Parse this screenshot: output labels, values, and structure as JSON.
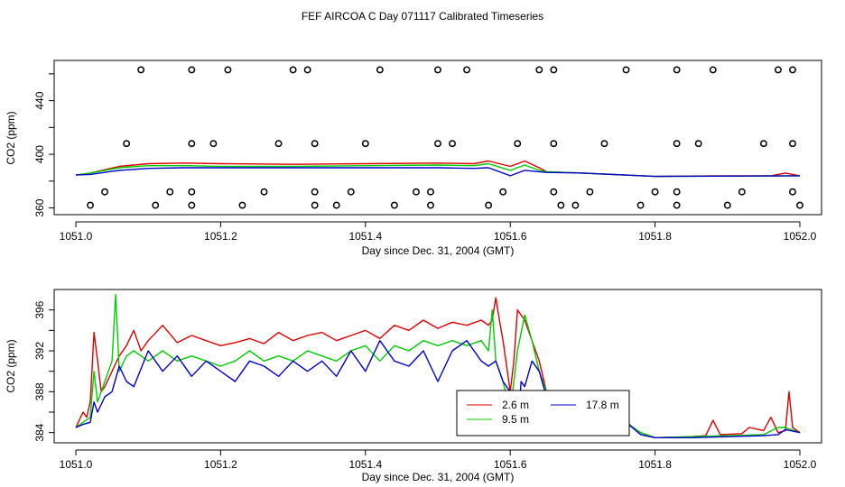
{
  "title": "FEF AIRCOA C  Day 071117  Calibrated Timeseries",
  "chart_data": [
    {
      "type": "line",
      "title": "",
      "xlabel": "Day since Dec. 31, 2004 (GMT)",
      "ylabel": "CO2 (ppm)",
      "xlim": [
        1051.0,
        1052.0
      ],
      "ylim": [
        355,
        470
      ],
      "xticks": [
        1051.0,
        1051.2,
        1051.4,
        1051.6,
        1051.8,
        1052.0
      ],
      "xtick_labels": [
        "1051.0",
        "1051.2",
        "1051.4",
        "1051.6",
        "1051.8",
        "1052.0"
      ],
      "yticks": [
        360,
        380,
        400,
        420,
        440,
        460
      ],
      "ytick_labels": [
        "360",
        "",
        "400",
        "",
        "440",
        ""
      ],
      "series": [
        {
          "name": "2.6 m",
          "color": "#dd0000",
          "x": [
            1051.0,
            1051.02,
            1051.06,
            1051.1,
            1051.15,
            1051.2,
            1051.3,
            1051.4,
            1051.5,
            1051.55,
            1051.57,
            1051.6,
            1051.62,
            1051.64,
            1051.65,
            1051.7,
            1051.8,
            1051.88,
            1051.9,
            1051.96,
            1051.98,
            1052.0
          ],
          "y": [
            384.5,
            386,
            391,
            393,
            393.5,
            393,
            392.5,
            393,
            393.5,
            393,
            395,
            391,
            395,
            390,
            387,
            386,
            383.5,
            384,
            384,
            384,
            386,
            384
          ]
        },
        {
          "name": "9.5 m",
          "color": "#00cc00",
          "x": [
            1051.0,
            1051.02,
            1051.06,
            1051.1,
            1051.15,
            1051.2,
            1051.3,
            1051.4,
            1051.5,
            1051.55,
            1051.57,
            1051.6,
            1051.62,
            1051.64,
            1051.65,
            1051.7,
            1051.8,
            1052.0
          ],
          "y": [
            384.5,
            386,
            390,
            391.5,
            391.5,
            391,
            391,
            391.5,
            392,
            391.5,
            393,
            388,
            392,
            388,
            387,
            386,
            383.5,
            384
          ]
        },
        {
          "name": "17.8 m",
          "color": "#0000cc",
          "x": [
            1051.0,
            1051.02,
            1051.06,
            1051.1,
            1051.15,
            1051.2,
            1051.3,
            1051.4,
            1051.5,
            1051.55,
            1051.57,
            1051.6,
            1051.62,
            1051.64,
            1051.65,
            1051.7,
            1051.8,
            1052.0
          ],
          "y": [
            384.5,
            385,
            388,
            389.5,
            390,
            390,
            390,
            390,
            390,
            389.5,
            390,
            384,
            388,
            387,
            386.5,
            386,
            383.5,
            384
          ]
        }
      ],
      "markers": {
        "name": "o",
        "x": [
          1051.09,
          1051.16,
          1051.21,
          1051.3,
          1051.32,
          1051.42,
          1051.5,
          1051.54,
          1051.64,
          1051.66,
          1051.76,
          1051.83,
          1051.88,
          1051.97,
          1051.99,
          1051.07,
          1051.16,
          1051.19,
          1051.28,
          1051.33,
          1051.4,
          1051.5,
          1051.52,
          1051.61,
          1051.66,
          1051.73,
          1051.83,
          1051.86,
          1051.95,
          1051.99,
          1051.04,
          1051.13,
          1051.16,
          1051.26,
          1051.33,
          1051.38,
          1051.47,
          1051.49,
          1051.59,
          1051.66,
          1051.71,
          1051.8,
          1051.83,
          1051.92,
          1051.99,
          1051.02,
          1051.11,
          1051.16,
          1051.23,
          1051.33,
          1051.36,
          1051.44,
          1051.49,
          1051.57,
          1051.67,
          1051.69,
          1051.78,
          1051.83,
          1051.9,
          1052.0
        ],
        "y": [
          463,
          463,
          463,
          463,
          463,
          463,
          463,
          463,
          463,
          463,
          463,
          463,
          463,
          463,
          463,
          408,
          408,
          408,
          408,
          408,
          408,
          408,
          408,
          408,
          408,
          408,
          408,
          408,
          408,
          408,
          372,
          372,
          372,
          372,
          372,
          372,
          372,
          372,
          372,
          372,
          372,
          372,
          372,
          372,
          372,
          362,
          362,
          362,
          362,
          362,
          362,
          362,
          362,
          362,
          362,
          362,
          362,
          362,
          362,
          362
        ]
      }
    },
    {
      "type": "line",
      "title": "",
      "xlabel": "Day since Dec. 31, 2004 (GMT)",
      "ylabel": "CO2 (ppm)",
      "xlim": [
        1051.0,
        1052.0
      ],
      "ylim": [
        383,
        398
      ],
      "xticks": [
        1051.0,
        1051.2,
        1051.4,
        1051.6,
        1051.8,
        1052.0
      ],
      "xtick_labels": [
        "1051.0",
        "1051.2",
        "1051.4",
        "1051.6",
        "1051.8",
        "1052.0"
      ],
      "yticks": [
        384,
        386,
        388,
        390,
        392,
        394,
        396
      ],
      "ytick_labels": [
        "384",
        "",
        "388",
        "",
        "392",
        "",
        "396"
      ],
      "legend": {
        "placement": "bottom-right",
        "entries": [
          "2.6 m",
          "9.5 m",
          "17.8 m"
        ]
      },
      "series": [
        {
          "name": "2.6 m",
          "color": "#dd0000",
          "x": [
            1051.0,
            1051.01,
            1051.015,
            1051.02,
            1051.025,
            1051.03,
            1051.035,
            1051.04,
            1051.05,
            1051.06,
            1051.07,
            1051.08,
            1051.09,
            1051.1,
            1051.12,
            1051.14,
            1051.16,
            1051.18,
            1051.2,
            1051.22,
            1051.24,
            1051.26,
            1051.28,
            1051.3,
            1051.32,
            1051.34,
            1051.36,
            1051.38,
            1051.4,
            1051.42,
            1051.44,
            1051.46,
            1051.48,
            1051.5,
            1051.52,
            1051.54,
            1051.56,
            1051.57,
            1051.575,
            1051.58,
            1051.585,
            1051.59,
            1051.6,
            1051.605,
            1051.61,
            1051.62,
            1051.63,
            1051.64,
            1051.65,
            1051.66,
            1051.68,
            1051.7,
            1051.72,
            1051.74,
            1051.76,
            1051.78,
            1051.8,
            1051.85,
            1051.87,
            1051.88,
            1051.89,
            1051.92,
            1051.93,
            1051.95,
            1051.96,
            1051.97,
            1051.98,
            1051.985,
            1051.99,
            1052.0
          ],
          "y": [
            384.5,
            386,
            385.5,
            387,
            393.8,
            391,
            388,
            388.5,
            390,
            391.5,
            392.5,
            394,
            392,
            393,
            394.5,
            392.8,
            393.5,
            393,
            392.5,
            392.8,
            393.2,
            392.7,
            393.8,
            393,
            393.5,
            393.8,
            393,
            393.5,
            394,
            393.2,
            394.5,
            394,
            395,
            394.2,
            394.8,
            394.5,
            395,
            394.5,
            395,
            397.2,
            395,
            393,
            388,
            391,
            396,
            395,
            393,
            391,
            388,
            387.5,
            387,
            386.5,
            386,
            385.5,
            385,
            384,
            383.5,
            383.6,
            383.7,
            385.2,
            383.8,
            383.9,
            384.5,
            384.2,
            385.5,
            384,
            384.2,
            388,
            384.5,
            384
          ]
        },
        {
          "name": "9.5 m",
          "color": "#00cc00",
          "x": [
            1051.0,
            1051.01,
            1051.02,
            1051.025,
            1051.03,
            1051.04,
            1051.05,
            1051.055,
            1051.06,
            1051.07,
            1051.08,
            1051.1,
            1051.12,
            1051.14,
            1051.16,
            1051.18,
            1051.2,
            1051.22,
            1051.24,
            1051.26,
            1051.28,
            1051.3,
            1051.32,
            1051.34,
            1051.36,
            1051.38,
            1051.4,
            1051.42,
            1051.44,
            1051.46,
            1051.48,
            1051.5,
            1051.52,
            1051.54,
            1051.56,
            1051.57,
            1051.575,
            1051.58,
            1051.59,
            1051.6,
            1051.61,
            1051.62,
            1051.63,
            1051.64,
            1051.65,
            1051.66,
            1051.68,
            1051.7,
            1051.72,
            1051.74,
            1051.76,
            1051.78,
            1051.8,
            1051.85,
            1051.9,
            1051.95,
            1051.97,
            1051.98,
            1052.0
          ],
          "y": [
            384.5,
            385,
            385.5,
            390,
            387,
            389,
            391,
            397.5,
            390,
            391.5,
            392,
            391,
            392,
            391,
            391.5,
            391,
            390.5,
            391,
            392,
            391,
            391.5,
            391,
            392,
            391.5,
            391,
            392,
            392.5,
            391,
            392.5,
            392,
            393,
            392.5,
            393,
            392.5,
            393,
            392,
            396,
            391,
            389,
            386,
            392,
            395.5,
            393,
            390,
            388,
            387.5,
            387,
            386.5,
            386,
            385.5,
            385,
            384,
            383.5,
            383.6,
            383.7,
            383.8,
            384.5,
            384.5,
            384
          ]
        },
        {
          "name": "17.8 m",
          "color": "#0000cc",
          "x": [
            1051.0,
            1051.01,
            1051.02,
            1051.025,
            1051.03,
            1051.04,
            1051.05,
            1051.06,
            1051.07,
            1051.08,
            1051.1,
            1051.12,
            1051.14,
            1051.16,
            1051.18,
            1051.2,
            1051.22,
            1051.24,
            1051.26,
            1051.28,
            1051.3,
            1051.32,
            1051.34,
            1051.36,
            1051.38,
            1051.4,
            1051.42,
            1051.44,
            1051.46,
            1051.48,
            1051.5,
            1051.52,
            1051.54,
            1051.56,
            1051.57,
            1051.58,
            1051.59,
            1051.6,
            1051.61,
            1051.615,
            1051.62,
            1051.63,
            1051.64,
            1051.65,
            1051.66,
            1051.68,
            1051.7,
            1051.72,
            1051.74,
            1051.76,
            1051.78,
            1051.8,
            1051.85,
            1051.9,
            1051.95,
            1051.97,
            1051.98,
            1052.0
          ],
          "y": [
            384.5,
            384.8,
            385,
            387,
            386,
            387.5,
            388,
            390.5,
            389,
            388.5,
            392,
            390,
            391.5,
            389.5,
            391,
            390,
            389,
            391,
            390.5,
            389.5,
            391,
            390,
            391,
            389.5,
            392,
            390,
            393,
            391,
            390.5,
            392,
            389,
            392,
            393,
            391,
            390.5,
            391,
            389,
            388,
            384,
            389,
            388.5,
            391,
            390,
            387.5,
            387.5,
            387,
            386.5,
            386,
            385.5,
            385,
            383.8,
            383.5,
            383.5,
            383.6,
            383.7,
            383.8,
            384.3,
            384
          ]
        }
      ]
    }
  ]
}
